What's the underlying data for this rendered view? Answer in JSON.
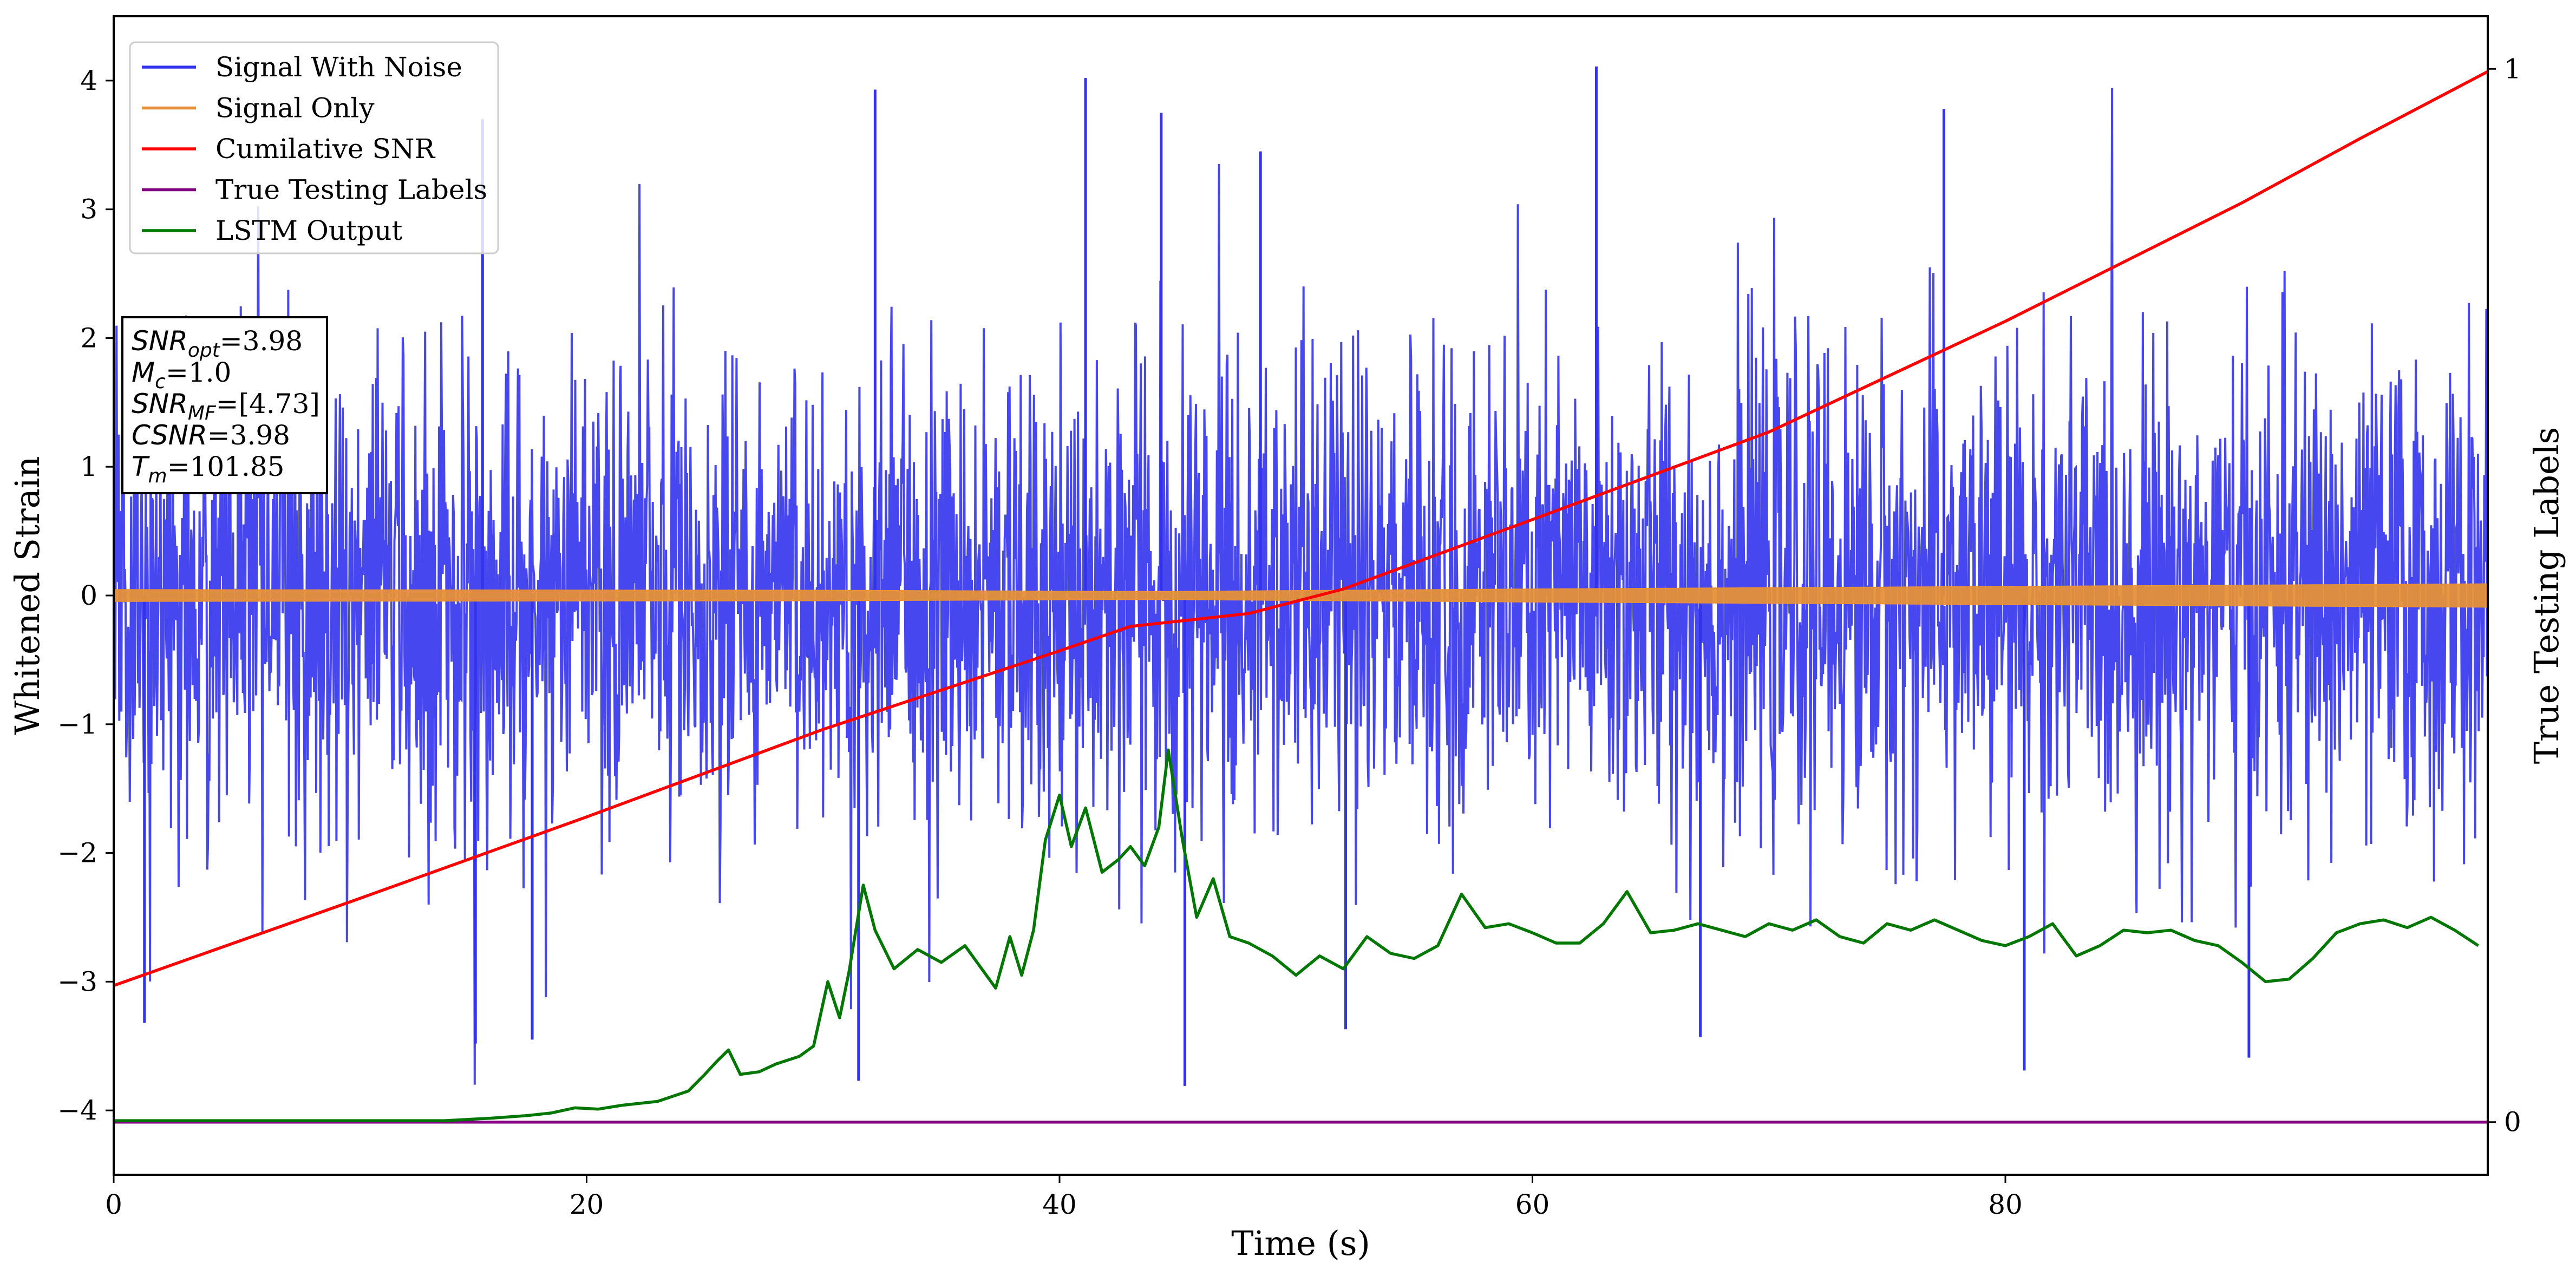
{
  "chart_data": {
    "type": "line",
    "xlabel": "Time (s)",
    "ylabel": "Whitened Strain",
    "y2label": "True Testing Labels",
    "xlim": [
      0,
      100.4
    ],
    "ylim": [
      -4.5,
      4.5
    ],
    "y2lim": [
      -0.05,
      1.05
    ],
    "x_ticks": [
      0,
      20,
      40,
      60,
      80
    ],
    "y_ticks": [
      -4,
      -3,
      -2,
      -1,
      0,
      1,
      2,
      3,
      4
    ],
    "y2_ticks": [
      0,
      1
    ],
    "grid": false,
    "legend_position": "top-left",
    "series": [
      {
        "name": "Signal With Noise",
        "axis": "left",
        "color": "#3333ee",
        "kind": "noise",
        "approx_envelope": [
          -3.8,
          4.1
        ],
        "notable_peaks": [
          {
            "x": 32.2,
            "y": 3.93
          },
          {
            "x": 41.1,
            "y": 4.02
          },
          {
            "x": 44.3,
            "y": 3.75
          },
          {
            "x": 62.7,
            "y": 4.11
          },
          {
            "x": 77.4,
            "y": 3.78
          },
          {
            "x": 48.5,
            "y": 3.45
          },
          {
            "x": 15.6,
            "y": 3.7
          }
        ],
        "notable_troughs": [
          {
            "x": 31.5,
            "y": -3.77
          },
          {
            "x": 45.3,
            "y": -3.81
          },
          {
            "x": 80.8,
            "y": -3.69
          },
          {
            "x": 90.3,
            "y": -3.59
          },
          {
            "x": 1.3,
            "y": -3.32
          },
          {
            "x": 15.3,
            "y": -3.48
          },
          {
            "x": 17.7,
            "y": -3.45
          },
          {
            "x": 52.1,
            "y": -3.37
          },
          {
            "x": 67.1,
            "y": -3.43
          }
        ]
      },
      {
        "name": "Signal Only",
        "axis": "left",
        "color": "#e69138",
        "kind": "band",
        "x": [
          0,
          30,
          44,
          60,
          100.4
        ],
        "amplitude": [
          0.045,
          0.04,
          0.03,
          0.05,
          0.09
        ]
      },
      {
        "name": "Cumilative SNR",
        "axis": "left",
        "color": "#ff0000",
        "x": [
          0,
          10,
          20,
          30,
          40,
          43,
          48,
          52,
          60,
          70,
          80,
          90,
          95,
          100.4
        ],
        "y": [
          -3.03,
          -2.38,
          -1.72,
          -1.04,
          -0.43,
          -0.24,
          -0.14,
          0.05,
          0.59,
          1.27,
          2.13,
          3.05,
          3.55,
          4.07
        ]
      },
      {
        "name": "True Testing Labels",
        "axis": "right",
        "color": "#800080",
        "x": [
          0,
          100.4
        ],
        "y": [
          0,
          0
        ]
      },
      {
        "name": "LSTM Output",
        "axis": "left",
        "color": "#007700",
        "x": [
          0,
          14,
          16,
          17.5,
          18.5,
          19.5,
          20.5,
          21.5,
          23,
          24.3,
          25,
          25.5,
          26,
          26.5,
          27.3,
          28,
          29,
          29.6,
          30.2,
          30.7,
          31.1,
          31.7,
          32.2,
          33,
          34,
          35,
          36,
          37.3,
          37.9,
          38.4,
          38.9,
          39.4,
          40,
          40.5,
          41.1,
          41.8,
          42.5,
          43,
          43.6,
          44.2,
          44.6,
          45.2,
          45.8,
          46.5,
          47.2,
          48,
          49,
          50,
          51,
          52,
          53,
          54,
          55,
          56,
          57,
          58,
          59,
          60,
          61,
          62,
          63,
          64,
          65,
          66,
          67,
          68,
          69,
          70,
          71,
          72,
          73,
          74,
          75,
          76,
          77,
          78,
          79,
          80,
          81,
          82,
          83,
          84,
          85,
          86,
          87,
          88,
          89,
          90,
          91,
          92,
          93,
          94,
          95,
          96,
          97,
          98,
          99,
          100
        ],
        "y": [
          -4.08,
          -4.08,
          -4.06,
          -4.04,
          -4.02,
          -3.98,
          -3.99,
          -3.96,
          -3.93,
          -3.85,
          -3.72,
          -3.62,
          -3.53,
          -3.72,
          -3.7,
          -3.64,
          -3.58,
          -3.5,
          -3.0,
          -3.28,
          -2.92,
          -2.25,
          -2.6,
          -2.9,
          -2.75,
          -2.85,
          -2.72,
          -3.05,
          -2.65,
          -2.95,
          -2.6,
          -1.9,
          -1.55,
          -1.95,
          -1.65,
          -2.15,
          -2.05,
          -1.95,
          -2.1,
          -1.8,
          -1.2,
          -1.9,
          -2.5,
          -2.2,
          -2.65,
          -2.7,
          -2.8,
          -2.95,
          -2.8,
          -2.9,
          -2.65,
          -2.78,
          -2.82,
          -2.72,
          -2.32,
          -2.58,
          -2.55,
          -2.62,
          -2.7,
          -2.7,
          -2.55,
          -2.3,
          -2.62,
          -2.6,
          -2.55,
          -2.6,
          -2.65,
          -2.55,
          -2.6,
          -2.52,
          -2.65,
          -2.7,
          -2.55,
          -2.6,
          -2.52,
          -2.6,
          -2.68,
          -2.72,
          -2.65,
          -2.55,
          -2.8,
          -2.72,
          -2.6,
          -2.62,
          -2.6,
          -2.68,
          -2.72,
          -2.85,
          -3.0,
          -2.98,
          -2.82,
          -2.62,
          -2.55,
          -2.52,
          -2.58,
          -2.5,
          -2.6,
          -2.72
        ]
      }
    ],
    "annotation": {
      "lines": [
        {
          "var": "SNR",
          "sub": "opt",
          "value": "=3.98"
        },
        {
          "var": "M",
          "sub": "c",
          "value": "=1.0"
        },
        {
          "var": "SNR",
          "sub": "MF",
          "value": "=[4.73]"
        },
        {
          "var": "CSNR",
          "sub": "",
          "value": "=3.98"
        },
        {
          "var": "T",
          "sub": "m",
          "value": "=101.85"
        }
      ]
    }
  }
}
